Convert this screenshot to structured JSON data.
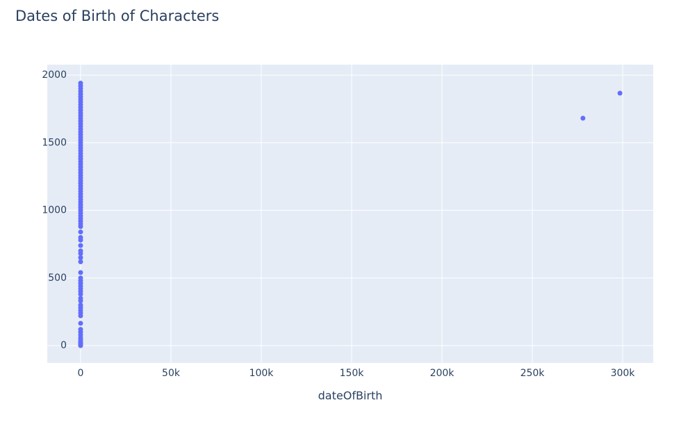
{
  "chart_data": {
    "type": "scatter",
    "title": "Dates of Birth of Characters",
    "x_label": "dateOfBirth",
    "x": [
      0,
      0,
      0,
      0,
      0,
      0,
      0,
      0,
      0,
      0,
      0,
      0,
      0,
      0,
      0,
      0,
      0,
      0,
      0,
      0,
      0,
      0,
      0,
      0,
      0,
      0,
      0,
      0,
      0,
      0,
      0,
      0,
      0,
      0,
      0,
      0,
      0,
      0,
      0,
      0,
      0,
      0,
      0,
      0,
      0,
      0,
      0,
      0,
      0,
      0,
      0,
      0,
      0,
      0,
      0,
      0,
      0,
      0,
      0,
      0,
      0,
      0,
      0,
      0,
      0,
      0,
      0,
      0,
      0,
      0,
      0,
      0,
      0,
      0,
      0,
      0,
      0,
      0,
      0,
      0,
      0,
      0,
      0,
      0,
      0,
      0,
      0,
      278000,
      298500
    ],
    "values": [
      0,
      10,
      20,
      30,
      45,
      60,
      80,
      100,
      120,
      165,
      220,
      240,
      260,
      280,
      300,
      330,
      350,
      380,
      400,
      420,
      440,
      460,
      480,
      500,
      540,
      620,
      650,
      680,
      700,
      740,
      780,
      800,
      840,
      880,
      900,
      920,
      940,
      960,
      980,
      1000,
      1020,
      1040,
      1060,
      1080,
      1100,
      1120,
      1140,
      1160,
      1180,
      1200,
      1220,
      1240,
      1260,
      1280,
      1300,
      1320,
      1340,
      1360,
      1380,
      1400,
      1420,
      1440,
      1460,
      1480,
      1500,
      1520,
      1540,
      1560,
      1580,
      1600,
      1620,
      1640,
      1660,
      1680,
      1700,
      1720,
      1740,
      1760,
      1780,
      1800,
      1820,
      1840,
      1860,
      1880,
      1900,
      1920,
      1940,
      1681,
      1866
    ],
    "color": "#636efa",
    "xlim": [
      -18460,
      316920
    ],
    "ylim": [
      -128,
      2077
    ],
    "xticks": [
      0,
      {
        "value": 50000,
        "label": "50k"
      },
      {
        "value": 100000,
        "label": "100k"
      },
      {
        "value": 150000,
        "label": "150k"
      },
      {
        "value": 200000,
        "label": "200k"
      },
      {
        "value": 250000,
        "label": "250k"
      },
      {
        "value": 300000,
        "label": "300k"
      }
    ],
    "yticks": [
      0,
      500,
      1000,
      1500,
      2000
    ],
    "grid": true
  }
}
